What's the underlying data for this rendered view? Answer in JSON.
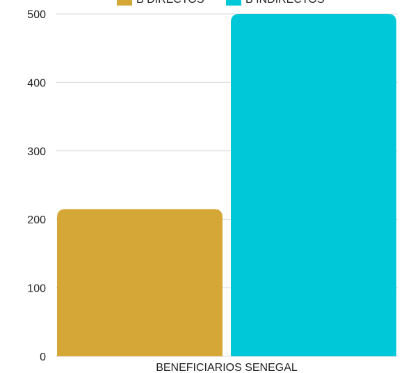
{
  "chart_data": {
    "type": "bar",
    "categories": [
      "BENEFICIARIOS SENEGAL"
    ],
    "series": [
      {
        "name": "B DIRECTOS",
        "values": [
          215
        ],
        "color": "#d4a736"
      },
      {
        "name": "B INDIRECTOS",
        "values": [
          500
        ],
        "color": "#00c8d8"
      }
    ],
    "ylim": [
      0,
      500
    ],
    "yticks": [
      0,
      100,
      200,
      300,
      400,
      500
    ],
    "grid": true,
    "legend_position": "top"
  }
}
